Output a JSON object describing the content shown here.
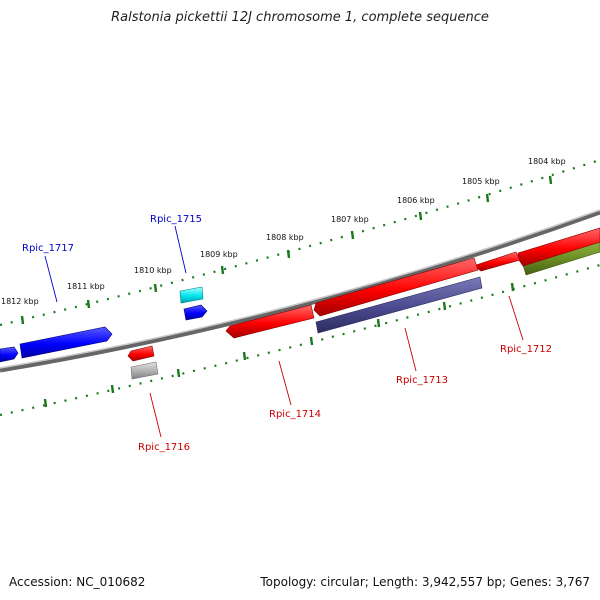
{
  "title": "Ralstonia pickettii 12J chromosome 1, complete sequence",
  "footer": {
    "accession": "Accession: NC_010682",
    "summary": "Topology: circular; Length: 3,942,557 bp; Genes: 3,767"
  },
  "ticks": [
    "1804 kbp",
    "1805 kbp",
    "1806 kbp",
    "1807 kbp",
    "1808 kbp",
    "1809 kbp",
    "1810 kbp",
    "1811 kbp",
    "1812 kbp"
  ],
  "genes": [
    {
      "name": "Rpic_1712",
      "color": "#cc0000"
    },
    {
      "name": "Rpic_1713",
      "color": "#cc0000"
    },
    {
      "name": "Rpic_1714",
      "color": "#cc0000"
    },
    {
      "name": "Rpic_1715",
      "color": "#0000cc"
    },
    {
      "name": "Rpic_1716",
      "color": "#cc0000"
    },
    {
      "name": "Rpic_1717",
      "color": "#0000cc"
    }
  ],
  "colors": {
    "forward_cds": "#ff0000",
    "reverse_cds": "#0000ff",
    "blast_match": "#4a4a8e",
    "olive_feature": "#6b8e23",
    "cyan_feature": "#00e5ee",
    "gray_feature": "#aaaaaa",
    "dotted_ring": "#1a7a1a",
    "backbone": "#777777"
  }
}
